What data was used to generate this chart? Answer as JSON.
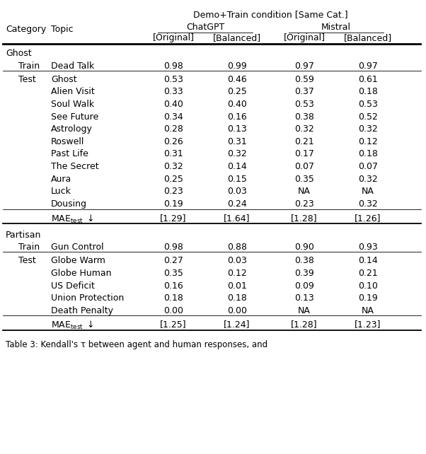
{
  "title": "Demo+Train condition [Same Cat.]",
  "chatgpt_label": "ChatGPT",
  "mistral_label": "Mistral",
  "orig_label": "[Original]",
  "bal_label": "[Balanced]",
  "cat_label": "Category",
  "topic_label": "Topic",
  "sections": [
    {
      "category": "Ghost",
      "train_label": "Train",
      "train_topic": "Dead Talk",
      "train_vals": [
        "0.98",
        "0.99",
        "0.97",
        "0.97"
      ],
      "test_label": "Test",
      "test_rows": [
        [
          "Ghost",
          "0.53",
          "0.46",
          "0.59",
          "0.61"
        ],
        [
          "Alien Visit",
          "0.33",
          "0.25",
          "0.37",
          "0.18"
        ],
        [
          "Soul Walk",
          "0.40",
          "0.40",
          "0.53",
          "0.53"
        ],
        [
          "See Future",
          "0.34",
          "0.16",
          "0.38",
          "0.52"
        ],
        [
          "Astrology",
          "0.28",
          "0.13",
          "0.32",
          "0.32"
        ],
        [
          "Roswell",
          "0.26",
          "0.31",
          "0.21",
          "0.12"
        ],
        [
          "Past Life",
          "0.31",
          "0.32",
          "0.17",
          "0.18"
        ],
        [
          "The Secret",
          "0.32",
          "0.14",
          "0.07",
          "0.07"
        ],
        [
          "Aura",
          "0.25",
          "0.15",
          "0.35",
          "0.32"
        ],
        [
          "Luck",
          "0.23",
          "0.03",
          "NA",
          "NA"
        ],
        [
          "Dousing",
          "0.19",
          "0.24",
          "0.23",
          "0.32"
        ]
      ],
      "mae_vals": [
        "[1.29]",
        "[1.64]",
        "[1.28]",
        "[1.26]"
      ]
    },
    {
      "category": "Partisan",
      "train_label": "Train",
      "train_topic": "Gun Control",
      "train_vals": [
        "0.98",
        "0.88",
        "0.90",
        "0.93"
      ],
      "test_label": "Test",
      "test_rows": [
        [
          "Globe Warm",
          "0.27",
          "0.03",
          "0.38",
          "0.14"
        ],
        [
          "Globe Human",
          "0.35",
          "0.12",
          "0.39",
          "0.21"
        ],
        [
          "US Deficit",
          "0.16",
          "0.01",
          "0.09",
          "0.10"
        ],
        [
          "Union Protection",
          "0.18",
          "0.18",
          "0.13",
          "0.19"
        ],
        [
          "Death Penalty",
          "0.00",
          "0.00",
          "NA",
          "NA"
        ]
      ],
      "mae_vals": [
        "[1.25]",
        "[1.24]",
        "[1.28]",
        "[1.23]"
      ]
    }
  ],
  "fs": 9.0,
  "caption": "Table 3: Kendall's τ between agent and human responses, and"
}
